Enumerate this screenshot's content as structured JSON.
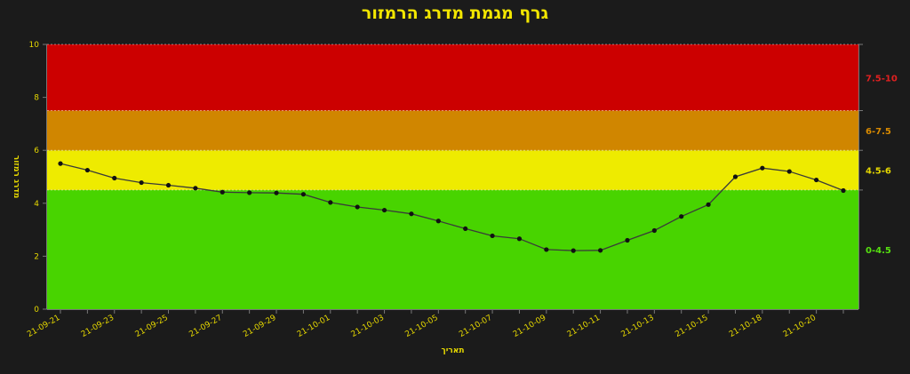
{
  "chart_data": {
    "type": "line",
    "title": "גרף מגמת מדרג הרמזור",
    "xlabel": "תאריך",
    "ylabel": "מדרג רמזור",
    "ylim": [
      0,
      10
    ],
    "yticks": [
      0,
      2,
      4,
      6,
      8,
      10
    ],
    "x": [
      "21-09-21",
      "21-09-22",
      "21-09-23",
      "21-09-24",
      "21-09-25",
      "21-09-26",
      "21-09-27",
      "21-09-28",
      "21-09-29",
      "21-09-30",
      "21-10-01",
      "21-10-02",
      "21-10-03",
      "21-10-04",
      "21-10-05",
      "21-10-06",
      "21-10-07",
      "21-10-08",
      "21-10-09",
      "21-10-10",
      "21-10-11",
      "21-10-12",
      "21-10-13",
      "21-10-14",
      "21-10-15",
      "21-10-17",
      "21-10-18",
      "21-10-19",
      "21-10-20",
      "21-10-21"
    ],
    "xtick_labels": [
      "21-09-21",
      "21-09-23",
      "21-09-25",
      "21-09-27",
      "21-09-29",
      "21-10-01",
      "21-10-03",
      "21-10-05",
      "21-10-07",
      "21-10-09",
      "21-10-11",
      "21-10-13",
      "21-10-15",
      "21-10-18",
      "21-10-20"
    ],
    "series": [
      {
        "values": [
          5.5,
          5.25,
          4.95,
          4.78,
          4.68,
          4.57,
          4.42,
          4.4,
          4.39,
          4.34,
          4.03,
          3.86,
          3.74,
          3.6,
          3.33,
          3.04,
          2.77,
          2.66,
          2.25,
          2.21,
          2.22,
          2.6,
          2.97,
          3.5,
          3.95,
          5.0,
          5.33,
          5.2,
          4.88,
          4.48
        ]
      }
    ],
    "bands": [
      {
        "label": "0-4.5",
        "from": 0,
        "to": 4.5,
        "color": "#48d400",
        "label_color": "#55e010"
      },
      {
        "label": "4.5-6",
        "from": 4.5,
        "to": 6,
        "color": "#eeeb00",
        "label_color": "#e6d800"
      },
      {
        "label": "6-7.5",
        "from": 6,
        "to": 7.5,
        "color": "#d08600",
        "label_color": "#d88a00"
      },
      {
        "label": "7.5-10",
        "from": 7.5,
        "to": 10,
        "color": "#cc0000",
        "label_color": "#e02020"
      }
    ],
    "grid": false,
    "line_color": "#3a3a3a",
    "marker_color": "#111111"
  }
}
